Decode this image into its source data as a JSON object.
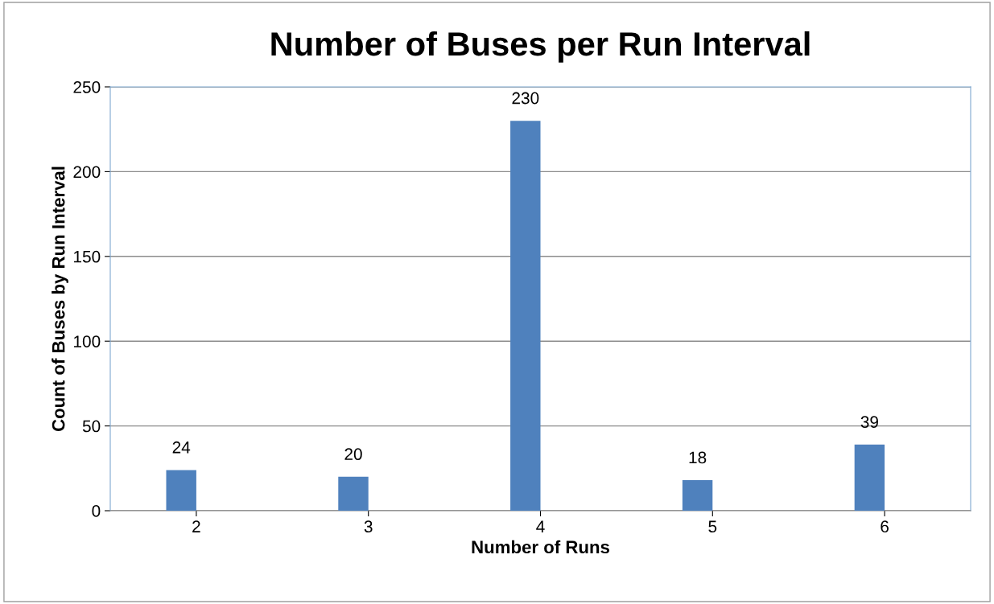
{
  "chart_data": {
    "type": "bar",
    "title": "Number of Buses per Run Interval",
    "xlabel": "Number of Runs",
    "ylabel": "Count of Buses by Run Interval",
    "categories": [
      "2",
      "3",
      "4",
      "5",
      "6"
    ],
    "series": [
      {
        "color": "#4f81bd",
        "values": [
          24,
          20,
          230,
          18,
          39
        ]
      }
    ],
    "ylim": [
      0,
      250
    ],
    "yticks": [
      0,
      50,
      100,
      150,
      200,
      250
    ],
    "grid": "y",
    "data_labels": true
  }
}
